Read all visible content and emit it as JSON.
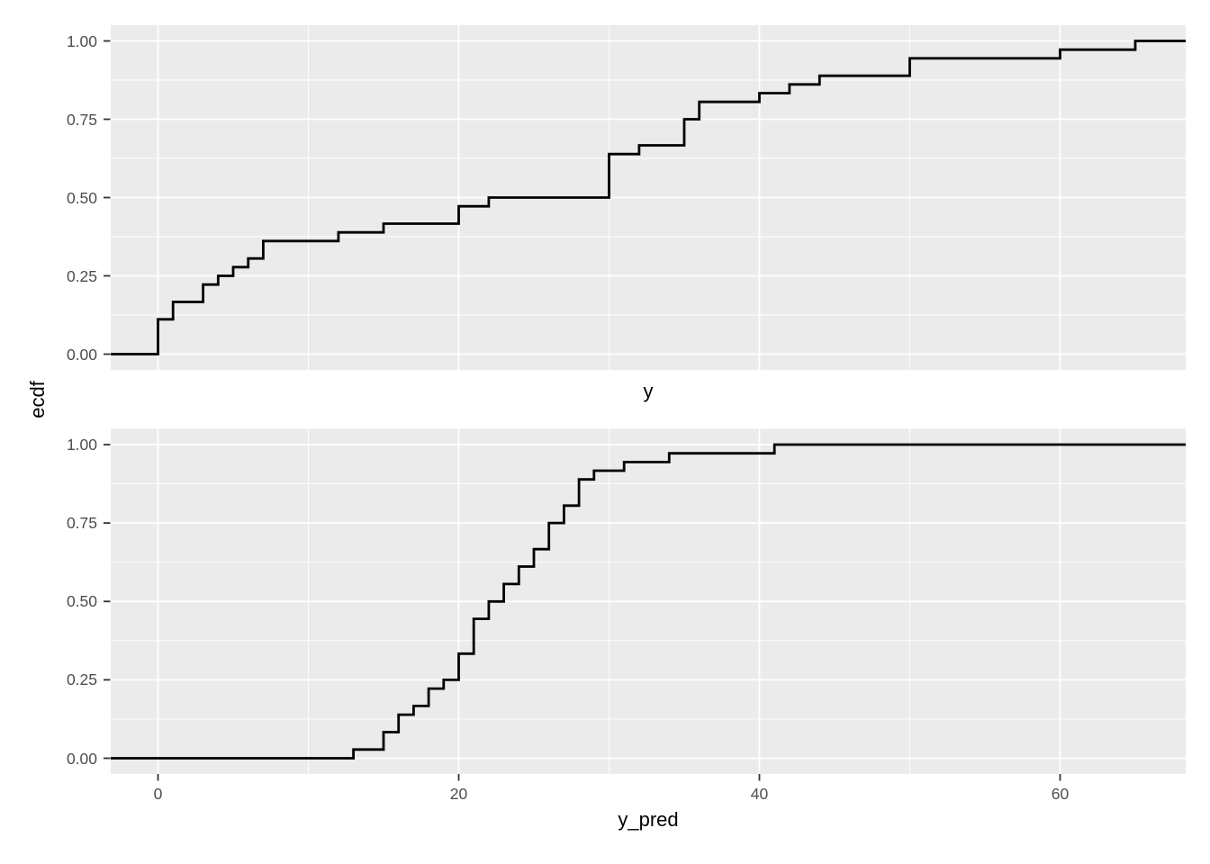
{
  "chart_data": {
    "type": "line",
    "subtype": "ecdf-step",
    "description": "Two stacked ggplot-style empirical CDF step plots sharing one y-axis label",
    "ylabel": "ecdf",
    "panels": [
      {
        "xlabel": "y",
        "n": 36,
        "values": [
          0,
          0,
          0,
          0,
          1,
          1,
          3,
          3,
          4,
          5,
          6,
          7,
          7,
          12,
          15,
          20,
          20,
          22,
          30,
          30,
          30,
          30,
          30,
          32,
          35,
          35,
          35,
          36,
          36,
          40,
          42,
          44,
          50,
          50,
          60,
          65
        ]
      },
      {
        "xlabel": "y_pred",
        "n": 36,
        "values": [
          13,
          15,
          15,
          16,
          16,
          17,
          18,
          18,
          19,
          20,
          20,
          20,
          21,
          21,
          21,
          21,
          22,
          22,
          23,
          23,
          24,
          24,
          25,
          25,
          26,
          26,
          26,
          27,
          27,
          28,
          28,
          28,
          29,
          31,
          34,
          41
        ]
      }
    ],
    "x_ticks": [
      0,
      20,
      40,
      60
    ],
    "x_minor_ticks": [
      10,
      30,
      50
    ],
    "y_ticks": [
      0,
      0.25,
      0.5,
      0.75,
      1
    ],
    "y_tick_labels": [
      "0.00",
      "0.25",
      "0.50",
      "0.75",
      "1.00"
    ],
    "y_minor_ticks": [
      0.125,
      0.375,
      0.625,
      0.875
    ],
    "xlim": [
      -3.25,
      68.25
    ],
    "ylim": [
      -0.05,
      1.05
    ],
    "grid": "major-and-minor",
    "legend": false,
    "colors": {
      "panel_background": "#ebebeb",
      "gridline": "#ffffff",
      "step_line": "#000000",
      "tick_mark": "#333333",
      "tick_text": "#4d4d4d",
      "axis_title_text": "#000000",
      "figure_background": "#ffffff"
    }
  }
}
